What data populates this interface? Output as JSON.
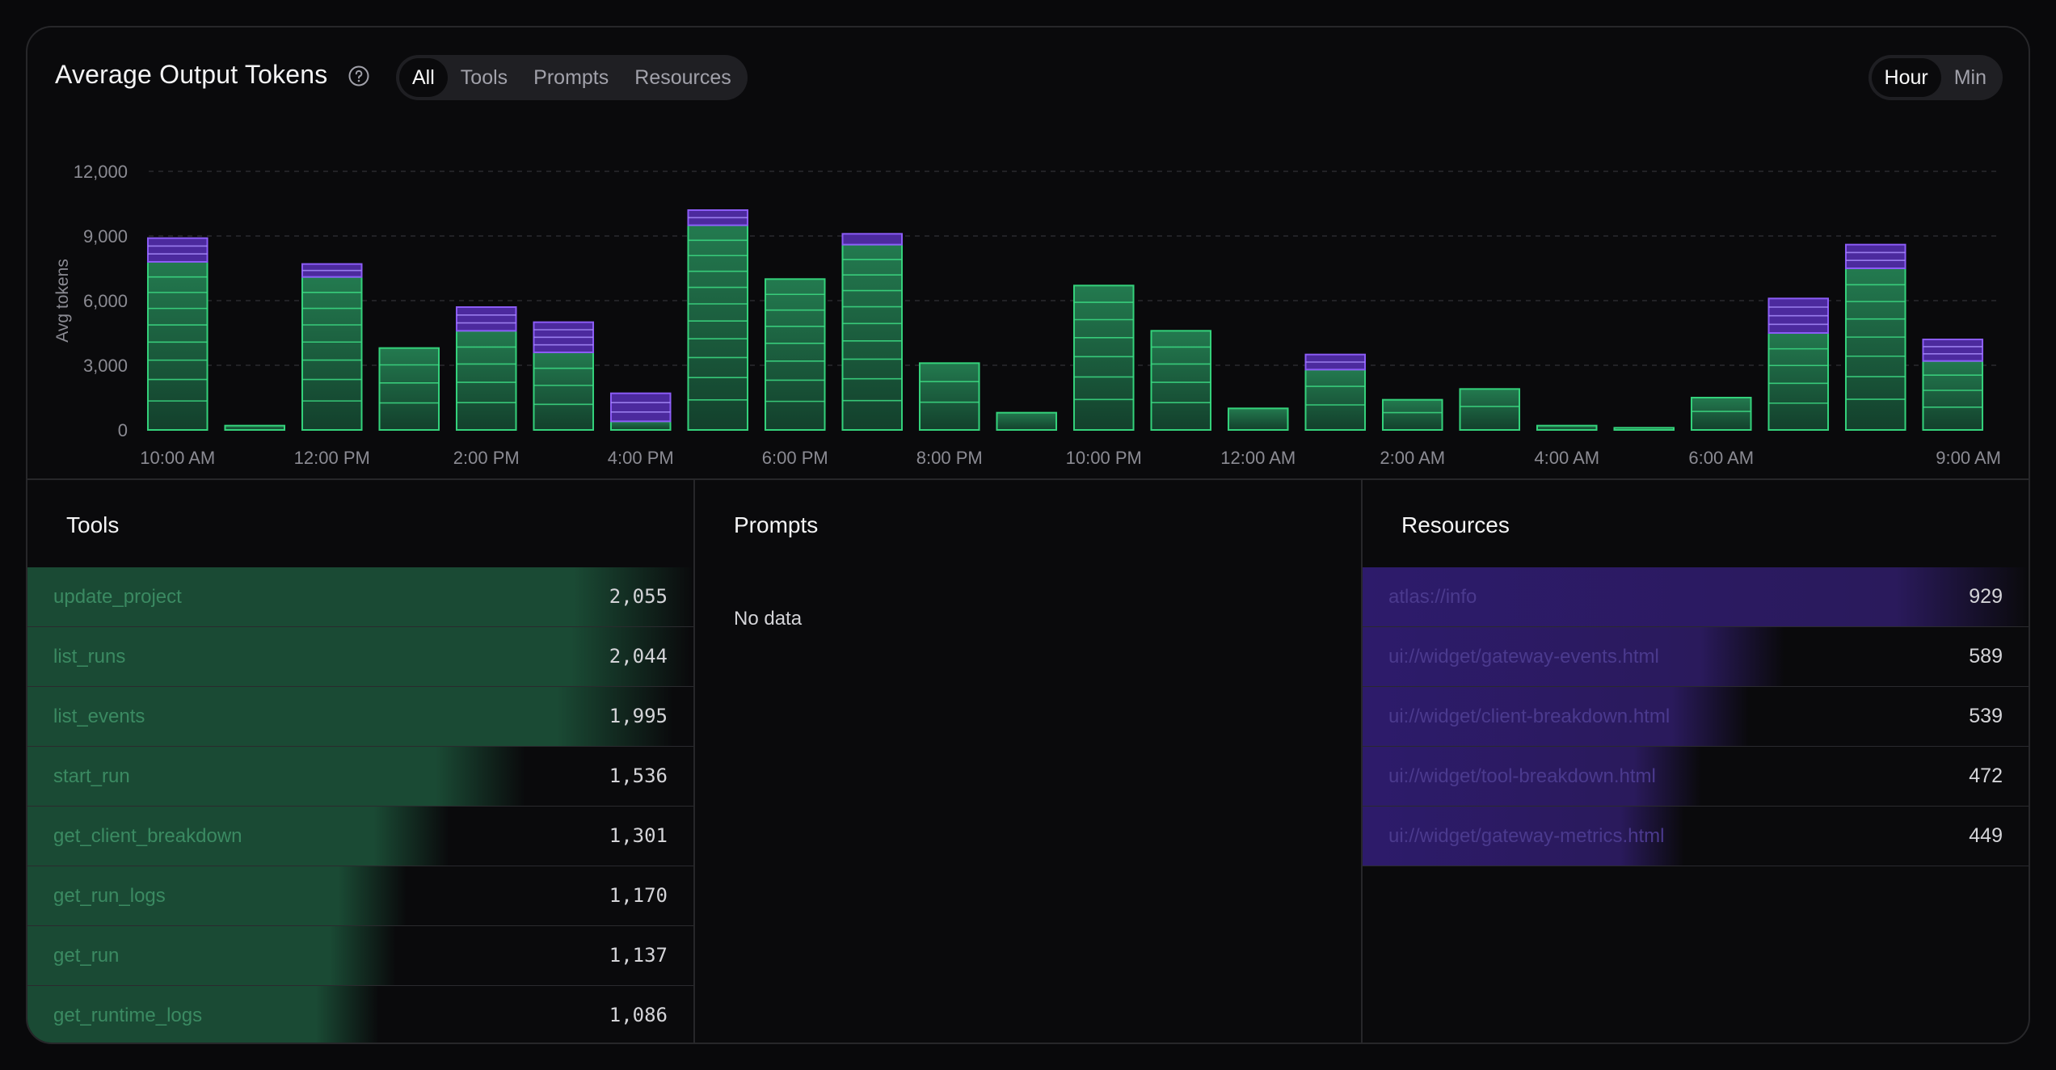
{
  "header": {
    "title": "Average Output Tokens",
    "filters": [
      "All",
      "Tools",
      "Prompts",
      "Resources"
    ],
    "active_filter": "All",
    "granularity": [
      "Hour",
      "Min"
    ],
    "active_granularity": "Hour"
  },
  "chart_data": {
    "type": "bar",
    "stacked": true,
    "ylabel": "Avg tokens",
    "ylim": [
      0,
      12000
    ],
    "yticks": [
      0,
      3000,
      6000,
      9000,
      12000
    ],
    "ytick_labels": [
      "0",
      "3,000",
      "6,000",
      "9,000",
      "12,000"
    ],
    "x_tick_labels": [
      "10:00 AM",
      "12:00 PM",
      "2:00 PM",
      "4:00 PM",
      "6:00 PM",
      "8:00 PM",
      "10:00 PM",
      "12:00 AM",
      "2:00 AM",
      "4:00 AM",
      "6:00 AM",
      "9:00 AM"
    ],
    "x_tick_index": [
      0,
      2,
      4,
      6,
      8,
      10,
      12,
      14,
      16,
      18,
      20,
      23
    ],
    "grid": true,
    "colors": {
      "tools": "#22c55e",
      "resources": "#7c3aed"
    },
    "series": [
      {
        "values": [
          8900,
          200,
          7700,
          3800,
          5700,
          5000,
          1700,
          10200,
          7000,
          9100,
          3100,
          800,
          6700,
          4600,
          1000,
          3500,
          1400,
          1900,
          200,
          100,
          1500,
          6100,
          8600,
          4200
        ],
        "resources": [
          1100,
          0,
          600,
          0,
          1100,
          1400,
          1300,
          700,
          0,
          500,
          0,
          0,
          0,
          0,
          0,
          700,
          0,
          0,
          0,
          0,
          0,
          1600,
          1100,
          1000
        ]
      }
    ]
  },
  "panels": {
    "tools": {
      "title": "Tools",
      "rows": [
        {
          "name": "update_project",
          "value": "2,055",
          "ratio": 1.0
        },
        {
          "name": "list_runs",
          "value": "2,044",
          "ratio": 0.995
        },
        {
          "name": "list_events",
          "value": "1,995",
          "ratio": 0.97
        },
        {
          "name": "start_run",
          "value": "1,536",
          "ratio": 0.747
        },
        {
          "name": "get_client_breakdown",
          "value": "1,301",
          "ratio": 0.633
        },
        {
          "name": "get_run_logs",
          "value": "1,170",
          "ratio": 0.569
        },
        {
          "name": "get_run",
          "value": "1,137",
          "ratio": 0.553
        },
        {
          "name": "get_runtime_logs",
          "value": "1,086",
          "ratio": 0.528
        }
      ]
    },
    "prompts": {
      "title": "Prompts",
      "empty": "No data"
    },
    "resources": {
      "title": "Resources",
      "rows": [
        {
          "name": "atlas://info",
          "value": "929",
          "ratio": 1.0
        },
        {
          "name": "ui://widget/gateway-events.html",
          "value": "589",
          "ratio": 0.634
        },
        {
          "name": "ui://widget/client-breakdown.html",
          "value": "539",
          "ratio": 0.58
        },
        {
          "name": "ui://widget/tool-breakdown.html",
          "value": "472",
          "ratio": 0.508
        },
        {
          "name": "ui://widget/gateway-metrics.html",
          "value": "449",
          "ratio": 0.483
        }
      ]
    }
  }
}
